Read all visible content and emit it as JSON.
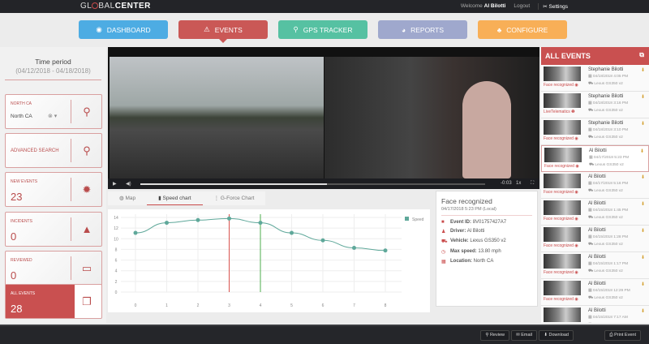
{
  "topbar": {
    "logo": "GLOBALCENTER",
    "welcome": "Welcome",
    "user": "Al Bilotti",
    "logout": "Logout",
    "settings": "Settings"
  },
  "nav": [
    {
      "label": "DASHBOARD",
      "color": "#45a9e3",
      "icon": "dashboard-icon"
    },
    {
      "label": "EVENTS",
      "color": "#c9514f",
      "icon": "warning-icon",
      "active": true
    },
    {
      "label": "GPS TRACKER",
      "color": "#4fbf9f",
      "icon": "pin-icon"
    },
    {
      "label": "REPORTS",
      "color": "#9ba5cc",
      "icon": "pie-icon"
    },
    {
      "label": "CONFIGURE",
      "color": "#f9ac50",
      "icon": "sitemap-icon"
    }
  ],
  "sidebar": {
    "time_period_label": "Time period",
    "time_range": "(04/12/2018 - 04/18/2018)",
    "region": {
      "label": "NORTH CA",
      "value": "North CA"
    },
    "advanced_search": "ADVANCED SEARCH",
    "new_events": {
      "label": "NEW EVENTS",
      "value": "23"
    },
    "incidents": {
      "label": "INCIDENTS",
      "value": "0"
    },
    "reviewed": {
      "label": "REVIEWED",
      "value": "0"
    },
    "all_events": {
      "label": "ALL EVENTS",
      "value": "28"
    }
  },
  "player": {
    "time": "-0:03",
    "speed": "1x",
    "progress": 0.54
  },
  "tabs": [
    "Map",
    "Speed chart",
    "G-Force Chart"
  ],
  "chart_data": {
    "type": "line",
    "x": [
      0,
      1,
      2,
      3,
      4,
      5,
      6,
      7,
      8
    ],
    "series": [
      {
        "name": "Speed",
        "values": [
          11.1,
          13,
          13.5,
          13.8,
          13,
          11.1,
          9.7,
          8.3,
          7.8
        ]
      }
    ],
    "ylim": [
      0,
      14
    ],
    "yticks": [
      0,
      2,
      4,
      6,
      8,
      10,
      12,
      14
    ],
    "grid": true,
    "legend": "top-right",
    "markers": [
      {
        "x": 3,
        "color": "#d9534f"
      },
      {
        "x": 4,
        "color": "#4cae4c"
      }
    ],
    "color": "#5fa89a"
  },
  "info": {
    "title": "Face recognized",
    "datetime": "04/17/2018 5:23 PM (Local)",
    "rows": [
      {
        "k": "Event ID:",
        "v": "8V01757427A7"
      },
      {
        "k": "Driver:",
        "v": "Al Bilotti"
      },
      {
        "k": "Vehicle:",
        "v": "Lexus GS350 v2"
      },
      {
        "k": "Max speed:",
        "v": "13.80 mph"
      },
      {
        "k": "Location:",
        "v": "North CA"
      }
    ]
  },
  "events_panel": {
    "title": "ALL EVENTS",
    "items": [
      {
        "name": "Stephanie Bilotti",
        "date": "04/18/2018 4:05 PM",
        "vehicle": "Lexus GS350 v2",
        "type": "Face recognized"
      },
      {
        "name": "Stephanie Bilotti",
        "date": "04/18/2018 3:16 PM",
        "vehicle": "Lexus GS350 v2",
        "type": "LiveTelematics"
      },
      {
        "name": "Stephanie Bilotti",
        "date": "04/18/2018 3:10 PM",
        "vehicle": "Lexus GS350 v2",
        "type": "Face recognized"
      },
      {
        "name": "Al Bilotti",
        "date": "04/17/2018 5:23 PM",
        "vehicle": "Lexus GS350 v2",
        "type": "Face recognized"
      },
      {
        "name": "Al Bilotti",
        "date": "04/17/2018 5:16 PM",
        "vehicle": "Lexus GS350 v2",
        "type": "Face recognized"
      },
      {
        "name": "Al Bilotti",
        "date": "04/15/2018 1:45 PM",
        "vehicle": "Lexus GS350 v2",
        "type": "Face recognized"
      },
      {
        "name": "Al Bilotti",
        "date": "04/15/2018 1:28 PM",
        "vehicle": "Lexus GS350 v2",
        "type": "Face recognized"
      },
      {
        "name": "Al Bilotti",
        "date": "04/15/2018 1:17 PM",
        "vehicle": "Lexus GS350 v2",
        "type": "Face recognized"
      },
      {
        "name": "Al Bilotti",
        "date": "04/15/2018 12:29 PM",
        "vehicle": "Lexus GS350 v2",
        "type": "Face recognized"
      },
      {
        "name": "Al Bilotti",
        "date": "04/15/2018 7:17 AM",
        "vehicle": "Lexus GS350 v2",
        "type": "Face recognized"
      },
      {
        "name": "Al Bilotti"
      }
    ]
  },
  "footer": [
    "Review",
    "Email",
    "Download",
    "Print Event"
  ]
}
